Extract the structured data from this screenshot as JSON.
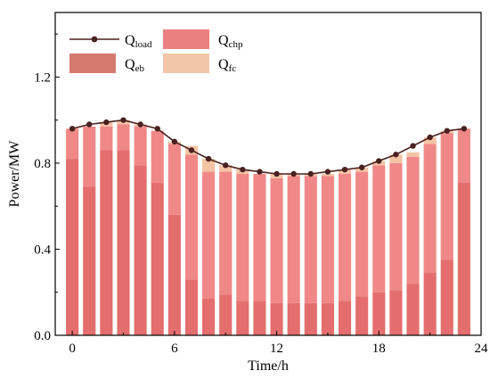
{
  "chart_data": {
    "type": "bar",
    "stacked": true,
    "x": [
      0,
      1,
      2,
      3,
      4,
      5,
      6,
      7,
      8,
      9,
      10,
      11,
      12,
      13,
      14,
      15,
      16,
      17,
      18,
      19,
      20,
      21,
      22,
      23
    ],
    "xlabel": "Time/h",
    "ylabel": "Power/MW",
    "xlim": [
      -1,
      24
    ],
    "ylim": [
      0,
      1.5
    ],
    "xticks": [
      "0",
      "6",
      "12",
      "18",
      "24"
    ],
    "yticks": [
      "0.0",
      "0.4",
      "0.8",
      "1.2"
    ],
    "series": [
      {
        "name": "Q_eb",
        "values": [
          0.82,
          0.69,
          0.86,
          0.86,
          0.79,
          0.71,
          0.56,
          0.26,
          0.17,
          0.19,
          0.16,
          0.16,
          0.15,
          0.15,
          0.15,
          0.15,
          0.16,
          0.18,
          0.2,
          0.21,
          0.24,
          0.29,
          0.35,
          0.71
        ]
      },
      {
        "name": "Q_chp",
        "values": [
          0.14,
          0.28,
          0.11,
          0.12,
          0.18,
          0.24,
          0.33,
          0.58,
          0.59,
          0.57,
          0.59,
          0.59,
          0.58,
          0.59,
          0.59,
          0.59,
          0.59,
          0.58,
          0.59,
          0.59,
          0.59,
          0.6,
          0.59,
          0.25
        ]
      },
      {
        "name": "Q_fc",
        "values": [
          0.0,
          0.0,
          0.02,
          0.02,
          0.01,
          0.0,
          0.01,
          0.04,
          0.06,
          0.03,
          0.02,
          0.0,
          0.02,
          0.01,
          0.01,
          0.01,
          0.02,
          0.02,
          0.02,
          0.04,
          0.02,
          0.03,
          0.01,
          0.0
        ]
      }
    ],
    "line": {
      "name": "Q_load",
      "values": [
        0.96,
        0.98,
        0.99,
        1.0,
        0.98,
        0.96,
        0.9,
        0.86,
        0.82,
        0.79,
        0.77,
        0.76,
        0.75,
        0.75,
        0.75,
        0.76,
        0.77,
        0.78,
        0.81,
        0.84,
        0.88,
        0.92,
        0.95,
        0.96
      ]
    },
    "legend": [
      {
        "base": "Q",
        "sub": "load",
        "color": "#4a2020",
        "kind": "line"
      },
      {
        "base": "Q",
        "sub": "chp",
        "color": "#eb8080",
        "kind": "box"
      },
      {
        "base": "Q",
        "sub": "eb",
        "color": "#d67a70",
        "kind": "box"
      },
      {
        "base": "Q",
        "sub": "fc",
        "color": "#f2c7a8",
        "kind": "box"
      }
    ],
    "legend_position": "top-left",
    "colors": {
      "eb": "#e46e6e",
      "chp": "#f08888",
      "fc": "#f4c3a4",
      "load": "#4a2020",
      "frame": "#000000"
    }
  }
}
